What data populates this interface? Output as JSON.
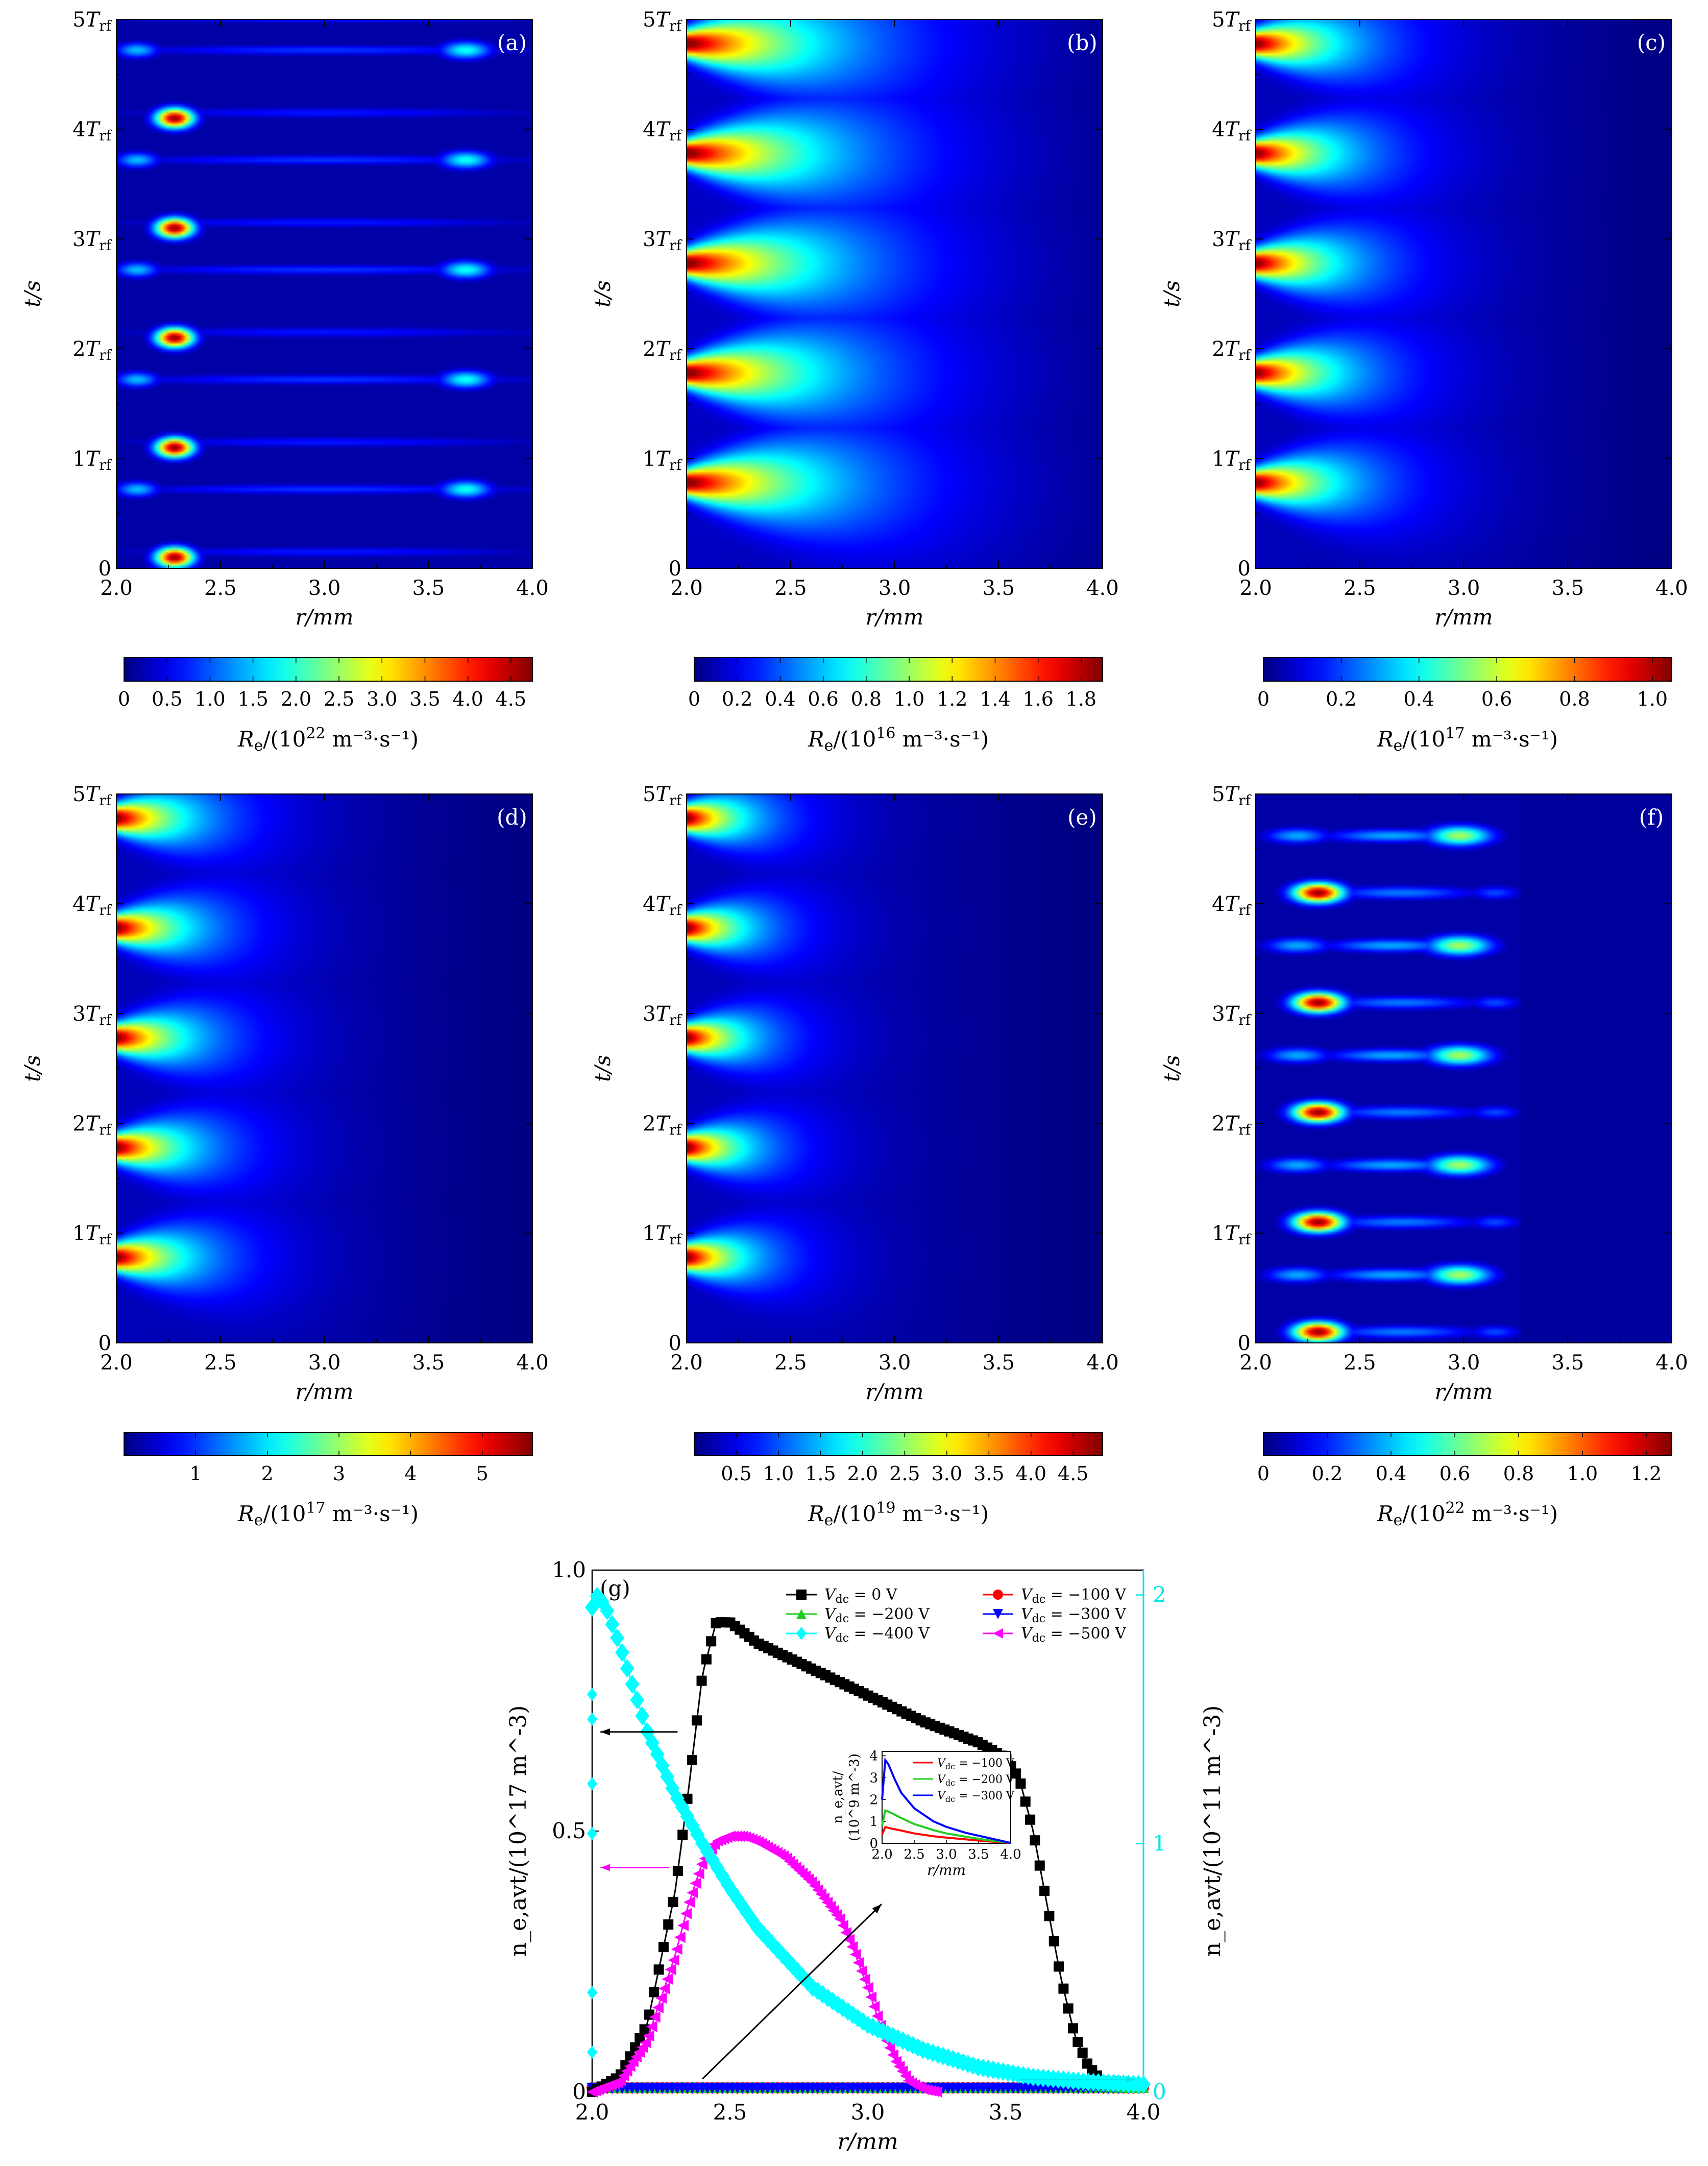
{
  "figure": {
    "heatmaps": [
      {
        "id": "a",
        "panel_label": "(a)",
        "pattern": "bimodal_wide",
        "xlabel": "r/mm",
        "ylabel": "t/s",
        "cbar_ticks": [
          "0",
          "0.5",
          "1.0",
          "1.5",
          "2.0",
          "2.5",
          "3.0",
          "3.5",
          "4.0",
          "4.5"
        ],
        "cbar_max": 4.75,
        "cbar_min": 0,
        "cbar_label_pre": "R",
        "cbar_label_sub": "e",
        "cbar_label_mid": "/(10",
        "cbar_label_exp": "22",
        "cbar_label_post": " m⁻³·s⁻¹)"
      },
      {
        "id": "b",
        "panel_label": "(b)",
        "pattern": "edge_peaks",
        "xlabel": "r/mm",
        "ylabel": "t/s",
        "cbar_ticks": [
          "0",
          "0.2",
          "0.4",
          "0.6",
          "0.8",
          "1.0",
          "1.2",
          "1.4",
          "1.6",
          "1.8"
        ],
        "cbar_max": 1.9,
        "cbar_min": 0,
        "cbar_label_pre": "R",
        "cbar_label_sub": "e",
        "cbar_label_mid": "/(10",
        "cbar_label_exp": "16",
        "cbar_label_post": " m⁻³·s⁻¹)"
      },
      {
        "id": "c",
        "panel_label": "(c)",
        "pattern": "edge_peaks",
        "xlabel": "r/mm",
        "ylabel": "t/s",
        "cbar_ticks": [
          "0",
          "0.2",
          "0.4",
          "0.6",
          "0.8",
          "1.0"
        ],
        "cbar_max": 1.05,
        "cbar_min": 0,
        "cbar_label_pre": "R",
        "cbar_label_sub": "e",
        "cbar_label_mid": "/(10",
        "cbar_label_exp": "17",
        "cbar_label_post": " m⁻³·s⁻¹)"
      },
      {
        "id": "d",
        "panel_label": "(d)",
        "pattern": "edge_peaks",
        "xlabel": "r/mm",
        "ylabel": "t/s",
        "cbar_ticks": [
          "1",
          "2",
          "3",
          "4",
          "5"
        ],
        "cbar_max": 5.7,
        "cbar_min": 0,
        "cbar_label_pre": "R",
        "cbar_label_sub": "e",
        "cbar_label_mid": "/(10",
        "cbar_label_exp": "17",
        "cbar_label_post": " m⁻³·s⁻¹)"
      },
      {
        "id": "e",
        "panel_label": "(e)",
        "pattern": "edge_peaks",
        "xlabel": "r/mm",
        "ylabel": "t/s",
        "cbar_ticks": [
          "0.5",
          "1.0",
          "1.5",
          "2.0",
          "2.5",
          "3.0",
          "3.5",
          "4.0",
          "4.5"
        ],
        "cbar_max": 4.85,
        "cbar_min": 0,
        "cbar_label_pre": "R",
        "cbar_label_sub": "e",
        "cbar_label_mid": "/(10",
        "cbar_label_exp": "19",
        "cbar_label_post": " m⁻³·s⁻¹)"
      },
      {
        "id": "f",
        "panel_label": "(f)",
        "pattern": "bimodal_narrow",
        "xlabel": "r/mm",
        "ylabel": "t/s",
        "cbar_ticks": [
          "0",
          "0.2",
          "0.4",
          "0.6",
          "0.8",
          "1.0",
          "1.2"
        ],
        "cbar_max": 1.28,
        "cbar_min": 0,
        "cbar_label_pre": "R",
        "cbar_label_sub": "e",
        "cbar_label_mid": "/(10",
        "cbar_label_exp": "22",
        "cbar_label_post": " m⁻³·s⁻¹)"
      }
    ],
    "heatmap_x_ticks": [
      "2.0",
      "2.5",
      "3.0",
      "3.5",
      "4.0"
    ],
    "heatmap_y_ticks": [
      "0",
      "1",
      "2",
      "3",
      "4",
      "5"
    ],
    "heatmap_y_tick_suffix": "T",
    "heatmap_y_tick_sub": "rf"
  },
  "chart_data": [
    {
      "type": "heatmap",
      "panel": "a",
      "x_range": [
        2.0,
        4.0
      ],
      "y_range": [
        0,
        5
      ],
      "x_unit": "mm",
      "y_unit": "T_rf",
      "description_values": "hot spots near r≈2.3 mm at t≈0.1,1.1,2.1,3.1,4.1 T_rf; weaker spots near r≈2.1 and 3.7 mm at t≈0.7,1.7,2.7,3.7,4.7 T_rf",
      "max": 4.75
    },
    {
      "type": "heatmap",
      "panel": "b",
      "x_range": [
        2.0,
        4.0
      ],
      "y_range": [
        0,
        5
      ],
      "peaks_r": 2.0,
      "peaks_t": [
        0.75,
        1.75,
        2.75,
        3.75,
        4.75
      ],
      "max": 1.9
    },
    {
      "type": "heatmap",
      "panel": "c",
      "x_range": [
        2.0,
        4.0
      ],
      "y_range": [
        0,
        5
      ],
      "peaks_r": 2.0,
      "peaks_t": [
        0.75,
        1.75,
        2.75,
        3.75,
        4.75
      ],
      "max": 1.05
    },
    {
      "type": "heatmap",
      "panel": "d",
      "x_range": [
        2.0,
        4.0
      ],
      "y_range": [
        0,
        5
      ],
      "peaks_r": 2.0,
      "peaks_t": [
        0.75,
        1.75,
        2.75,
        3.75,
        4.75
      ],
      "max": 5.7
    },
    {
      "type": "heatmap",
      "panel": "e",
      "x_range": [
        2.0,
        4.0
      ],
      "y_range": [
        0,
        5
      ],
      "peaks_r": 2.0,
      "peaks_t": [
        0.75,
        1.75,
        2.75,
        3.75,
        4.75
      ],
      "max": 4.85
    },
    {
      "type": "heatmap",
      "panel": "f",
      "x_range": [
        2.0,
        4.0
      ],
      "y_range": [
        0,
        5
      ],
      "description_values": "hot spots near r≈2.3 mm at t≈0.1..4.1 T_rf; secondary spots near r≈3.0 mm at t≈0.6..4.6 T_rf; zero beyond r≈3.25 mm",
      "max": 1.28
    },
    {
      "type": "line",
      "panel": "g",
      "panel_label": "(g)",
      "xlabel": "r/mm",
      "ylabel_left": "n_e,avt/(10^17 m^-3)",
      "ylabel_right": "n_e,avt/(10^11 m^-3)",
      "xlim": [
        2.0,
        4.0
      ],
      "ylim_left": [
        0,
        1.0
      ],
      "ylim_right": [
        0,
        2.1
      ],
      "x_ticks": [
        "2.0",
        "2.5",
        "3.0",
        "3.5",
        "4.0"
      ],
      "y_ticks_left": [
        "0",
        "0.5",
        "1.0"
      ],
      "y_ticks_right": [
        "0",
        "1",
        "2"
      ],
      "series": [
        {
          "name": "V_dc = 0 V",
          "legend": "0 V",
          "color": "#000000",
          "marker": "square",
          "axis": "left",
          "x": [
            2.0,
            2.1,
            2.2,
            2.3,
            2.35,
            2.4,
            2.45,
            2.5,
            2.55,
            2.6,
            2.8,
            3.0,
            3.2,
            3.4,
            3.5,
            3.55,
            3.6,
            3.65,
            3.7,
            3.75,
            3.8,
            3.85,
            3.9
          ],
          "y": [
            0.0,
            0.03,
            0.13,
            0.38,
            0.58,
            0.8,
            0.9,
            0.9,
            0.88,
            0.86,
            0.81,
            0.76,
            0.71,
            0.67,
            0.64,
            0.6,
            0.5,
            0.36,
            0.22,
            0.11,
            0.05,
            0.02,
            0.02
          ]
        },
        {
          "name": "V_dc = -100 V",
          "legend": "−100 V",
          "color": "#ff0000",
          "marker": "circle",
          "axis": "left",
          "x": [
            2.0,
            4.0
          ],
          "y": [
            0.008,
            0.008
          ]
        },
        {
          "name": "V_dc = -200 V",
          "legend": "−200 V",
          "color": "#22cc22",
          "marker": "triangle-up",
          "axis": "left",
          "x": [
            2.0,
            4.0
          ],
          "y": [
            0.009,
            0.009
          ]
        },
        {
          "name": "V_dc = -300 V",
          "legend": "−300 V",
          "color": "#0000ff",
          "marker": "triangle-down",
          "axis": "left",
          "x": [
            2.0,
            4.0
          ],
          "y": [
            0.007,
            0.007
          ]
        },
        {
          "name": "V_dc = -400 V",
          "legend": "−400 V",
          "color": "#00ffff",
          "marker": "diamond",
          "axis": "right",
          "x": [
            2.0,
            2.02,
            2.05,
            2.1,
            2.2,
            2.3,
            2.4,
            2.5,
            2.6,
            2.8,
            3.0,
            3.2,
            3.4,
            3.6,
            3.8,
            4.0
          ],
          "y": [
            1.95,
            2.0,
            1.95,
            1.8,
            1.45,
            1.2,
            1.0,
            0.82,
            0.66,
            0.42,
            0.27,
            0.17,
            0.1,
            0.06,
            0.04,
            0.03
          ]
        },
        {
          "name": "V_dc = -500 V",
          "legend": "−500 V",
          "color": "#ff00ff",
          "marker": "triangle-left",
          "axis": "left",
          "x": [
            2.0,
            2.1,
            2.2,
            2.3,
            2.35,
            2.4,
            2.45,
            2.5,
            2.55,
            2.6,
            2.7,
            2.8,
            2.9,
            2.95,
            3.0,
            3.05,
            3.1,
            3.15,
            3.2,
            3.25
          ],
          "y": [
            0.0,
            0.02,
            0.1,
            0.26,
            0.36,
            0.44,
            0.48,
            0.49,
            0.49,
            0.48,
            0.45,
            0.4,
            0.33,
            0.27,
            0.2,
            0.12,
            0.06,
            0.02,
            0.005,
            0.0
          ]
        }
      ],
      "inset": {
        "xlabel": "r/mm",
        "ylabel_line1": "n_e,avt/",
        "ylabel_line2": "(10^9 m^-3)",
        "xlim": [
          2.0,
          4.0
        ],
        "ylim": [
          0,
          4.2
        ],
        "x_ticks": [
          "2.0",
          "2.5",
          "3.0",
          "3.5",
          "4.0"
        ],
        "y_ticks": [
          "0",
          "1",
          "2",
          "3",
          "4"
        ],
        "series": [
          {
            "name": "V_dc = -100 V",
            "legend": "−100 V",
            "color": "#ff0000",
            "x": [
              2.0,
              2.05,
              2.1,
              2.3,
              2.5,
              2.8,
              3.0,
              3.3,
              3.6,
              4.0
            ],
            "y": [
              0.4,
              0.75,
              0.7,
              0.58,
              0.45,
              0.32,
              0.26,
              0.18,
              0.1,
              0.02
            ]
          },
          {
            "name": "V_dc = -200 V",
            "legend": "−200 V",
            "color": "#22cc22",
            "x": [
              2.0,
              2.05,
              2.1,
              2.3,
              2.5,
              2.8,
              3.0,
              3.3,
              3.6,
              4.0
            ],
            "y": [
              0.8,
              1.5,
              1.45,
              1.15,
              0.88,
              0.6,
              0.45,
              0.3,
              0.16,
              0.02
            ]
          },
          {
            "name": "V_dc = -300 V",
            "legend": "−300 V",
            "color": "#0000ff",
            "x": [
              2.0,
              2.05,
              2.1,
              2.2,
              2.3,
              2.5,
              2.8,
              3.0,
              3.3,
              3.6,
              4.0
            ],
            "y": [
              2.0,
              3.8,
              3.6,
              2.9,
              2.3,
              1.6,
              1.0,
              0.75,
              0.48,
              0.28,
              0.02
            ]
          }
        ]
      },
      "legend_prefix": "V",
      "legend_sub": "dc"
    }
  ]
}
